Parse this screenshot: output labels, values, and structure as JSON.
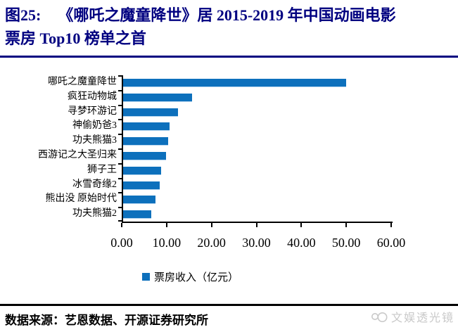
{
  "figure": {
    "label": "图25:",
    "title_line1": "《哪吒之魔童降世》居 2015-2019 年中国动画电影",
    "title_line2": "票房 Top10 榜单之首"
  },
  "chart_data": {
    "type": "bar",
    "orientation": "horizontal",
    "title": "《哪吒之魔童降世》居2015-2019年中国动画电影票房Top10榜单之首",
    "categories": [
      "哪吒之魔童降世",
      "疯狂动物城",
      "寻梦环游记",
      "神偷奶爸3",
      "功夫熊猫3",
      "西游记之大圣归来",
      "狮子王",
      "冰雪奇缘2",
      "熊出没 原始时代",
      "功夫熊猫2"
    ],
    "values": [
      49.7,
      15.3,
      12.2,
      10.4,
      10.0,
      9.6,
      8.4,
      8.2,
      7.2,
      6.2
    ],
    "series_name": "票房收入（亿元）",
    "unit": "亿元",
    "xlim": [
      0,
      60
    ],
    "x_ticks": [
      "0.00",
      "10.00",
      "20.00",
      "30.00",
      "40.00",
      "50.00",
      "60.00"
    ],
    "legend_position": "bottom",
    "grid": false
  },
  "footer": {
    "source": "数据来源：艺恩数据、开源证券研究所",
    "watermark": "文娱透光镜"
  },
  "colors": {
    "title_navy": "#000080",
    "bar_blue": "#0d70bc",
    "axis_black": "#000000",
    "watermark_gray": "#c9c9c9"
  }
}
